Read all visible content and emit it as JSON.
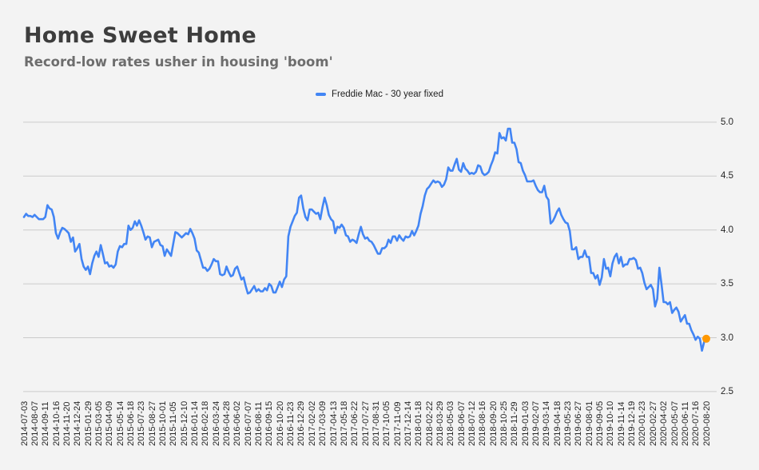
{
  "page": {
    "background": "#f3f3f3"
  },
  "header": {
    "title": "Home Sweet Home",
    "subtitle": "Record-low rates usher in housing 'boom'"
  },
  "legend": {
    "label": "Freddie Mac - 30 year fixed",
    "marker_color": "#4285f4"
  },
  "chart_data": {
    "type": "line",
    "title": "Home Sweet Home",
    "subtitle": "Record-low rates usher in housing 'boom'",
    "legend_position": "top-center",
    "grid": true,
    "y_axis": {
      "side": "right",
      "ticks": [
        5.0,
        4.5,
        4.0,
        3.5,
        3.0,
        2.5
      ],
      "ylim": [
        2.5,
        5.0
      ]
    },
    "x_axis": {
      "tick_every_n_points": 5,
      "label_rotation_deg": -90,
      "first_label": "2014-07-03",
      "last_label": "2020-08-20"
    },
    "colors": {
      "line": "#4285f4",
      "end_dot": "#ff9800",
      "gridline": "#cbcbcb"
    },
    "series": [
      {
        "name": "Freddie Mac - 30 year fixed",
        "color": "#4285f4",
        "end_point_marker": {
          "color": "#ff9800",
          "date": "2020-08-20",
          "value": 2.99
        },
        "x": [
          "2014-07-03",
          "2014-07-10",
          "2014-07-17",
          "2014-07-24",
          "2014-07-31",
          "2014-08-07",
          "2014-08-14",
          "2014-08-21",
          "2014-08-28",
          "2014-09-04",
          "2014-09-11",
          "2014-09-18",
          "2014-09-25",
          "2014-10-02",
          "2014-10-09",
          "2014-10-16",
          "2014-10-23",
          "2014-10-30",
          "2014-11-06",
          "2014-11-13",
          "2014-11-20",
          "2014-11-26",
          "2014-12-04",
          "2014-12-11",
          "2014-12-18",
          "2014-12-24",
          "2014-12-31",
          "2015-01-08",
          "2015-01-15",
          "2015-01-22",
          "2015-01-29",
          "2015-02-05",
          "2015-02-12",
          "2015-02-19",
          "2015-02-26",
          "2015-03-05",
          "2015-03-12",
          "2015-03-19",
          "2015-03-26",
          "2015-04-02",
          "2015-04-09",
          "2015-04-16",
          "2015-04-23",
          "2015-04-30",
          "2015-05-07",
          "2015-05-14",
          "2015-05-21",
          "2015-05-28",
          "2015-06-04",
          "2015-06-11",
          "2015-06-18",
          "2015-06-25",
          "2015-07-02",
          "2015-07-09",
          "2015-07-16",
          "2015-07-23",
          "2015-07-30",
          "2015-08-06",
          "2015-08-13",
          "2015-08-20",
          "2015-08-27",
          "2015-09-03",
          "2015-09-10",
          "2015-09-17",
          "2015-09-24",
          "2015-10-01",
          "2015-10-08",
          "2015-10-15",
          "2015-10-22",
          "2015-10-29",
          "2015-11-05",
          "2015-11-12",
          "2015-11-19",
          "2015-11-25",
          "2015-12-03",
          "2015-12-10",
          "2015-12-17",
          "2015-12-24",
          "2015-12-31",
          "2016-01-07",
          "2016-01-14",
          "2016-01-21",
          "2016-01-28",
          "2016-02-04",
          "2016-02-11",
          "2016-02-18",
          "2016-02-25",
          "2016-03-03",
          "2016-03-10",
          "2016-03-17",
          "2016-03-24",
          "2016-03-31",
          "2016-04-07",
          "2016-04-14",
          "2016-04-21",
          "2016-04-28",
          "2016-05-05",
          "2016-05-12",
          "2016-05-19",
          "2016-05-26",
          "2016-06-02",
          "2016-06-09",
          "2016-06-16",
          "2016-06-23",
          "2016-06-30",
          "2016-07-07",
          "2016-07-14",
          "2016-07-21",
          "2016-07-28",
          "2016-08-04",
          "2016-08-11",
          "2016-08-18",
          "2016-08-25",
          "2016-09-01",
          "2016-09-08",
          "2016-09-15",
          "2016-09-22",
          "2016-09-29",
          "2016-10-06",
          "2016-10-13",
          "2016-10-20",
          "2016-10-27",
          "2016-11-03",
          "2016-11-10",
          "2016-11-17",
          "2016-11-23",
          "2016-12-01",
          "2016-12-08",
          "2016-12-15",
          "2016-12-22",
          "2016-12-29",
          "2017-01-05",
          "2017-01-12",
          "2017-01-19",
          "2017-01-26",
          "2017-02-02",
          "2017-02-09",
          "2017-02-16",
          "2017-02-23",
          "2017-03-02",
          "2017-03-09",
          "2017-03-16",
          "2017-03-23",
          "2017-03-30",
          "2017-04-06",
          "2017-04-13",
          "2017-04-20",
          "2017-04-27",
          "2017-05-04",
          "2017-05-11",
          "2017-05-18",
          "2017-05-25",
          "2017-06-01",
          "2017-06-08",
          "2017-06-15",
          "2017-06-22",
          "2017-06-29",
          "2017-07-06",
          "2017-07-13",
          "2017-07-20",
          "2017-07-27",
          "2017-08-03",
          "2017-08-10",
          "2017-08-17",
          "2017-08-24",
          "2017-08-31",
          "2017-09-07",
          "2017-09-14",
          "2017-09-21",
          "2017-09-28",
          "2017-10-05",
          "2017-10-12",
          "2017-10-19",
          "2017-10-26",
          "2017-11-02",
          "2017-11-09",
          "2017-11-16",
          "2017-11-22",
          "2017-11-30",
          "2017-12-07",
          "2017-12-14",
          "2017-12-21",
          "2017-12-28",
          "2018-01-04",
          "2018-01-11",
          "2018-01-18",
          "2018-01-25",
          "2018-02-01",
          "2018-02-08",
          "2018-02-15",
          "2018-02-22",
          "2018-03-01",
          "2018-03-08",
          "2018-03-15",
          "2018-03-22",
          "2018-03-29",
          "2018-04-05",
          "2018-04-12",
          "2018-04-19",
          "2018-04-26",
          "2018-05-03",
          "2018-05-10",
          "2018-05-17",
          "2018-05-24",
          "2018-05-31",
          "2018-06-07",
          "2018-06-14",
          "2018-06-21",
          "2018-06-28",
          "2018-07-05",
          "2018-07-12",
          "2018-07-19",
          "2018-07-26",
          "2018-08-02",
          "2018-08-09",
          "2018-08-16",
          "2018-08-23",
          "2018-08-30",
          "2018-09-06",
          "2018-09-13",
          "2018-09-20",
          "2018-09-27",
          "2018-10-04",
          "2018-10-11",
          "2018-10-18",
          "2018-10-25",
          "2018-11-01",
          "2018-11-08",
          "2018-11-15",
          "2018-11-21",
          "2018-11-29",
          "2018-12-06",
          "2018-12-13",
          "2018-12-20",
          "2018-12-27",
          "2019-01-03",
          "2019-01-10",
          "2019-01-17",
          "2019-01-24",
          "2019-01-31",
          "2019-02-07",
          "2019-02-14",
          "2019-02-21",
          "2019-02-28",
          "2019-03-07",
          "2019-03-14",
          "2019-03-21",
          "2019-03-28",
          "2019-04-04",
          "2019-04-11",
          "2019-04-18",
          "2019-04-25",
          "2019-05-02",
          "2019-05-09",
          "2019-05-16",
          "2019-05-23",
          "2019-05-30",
          "2019-06-06",
          "2019-06-13",
          "2019-06-20",
          "2019-06-27",
          "2019-07-03",
          "2019-07-11",
          "2019-07-18",
          "2019-07-25",
          "2019-08-01",
          "2019-08-08",
          "2019-08-15",
          "2019-08-22",
          "2019-08-29",
          "2019-09-05",
          "2019-09-12",
          "2019-09-19",
          "2019-09-26",
          "2019-10-03",
          "2019-10-10",
          "2019-10-17",
          "2019-10-24",
          "2019-10-31",
          "2019-11-07",
          "2019-11-14",
          "2019-11-21",
          "2019-11-27",
          "2019-12-05",
          "2019-12-12",
          "2019-12-19",
          "2019-12-26",
          "2020-01-02",
          "2020-01-09",
          "2020-01-16",
          "2020-01-23",
          "2020-01-30",
          "2020-02-06",
          "2020-02-13",
          "2020-02-20",
          "2020-02-27",
          "2020-03-05",
          "2020-03-12",
          "2020-03-19",
          "2020-03-26",
          "2020-04-02",
          "2020-04-09",
          "2020-04-16",
          "2020-04-23",
          "2020-04-30",
          "2020-05-07",
          "2020-05-14",
          "2020-05-21",
          "2020-05-28",
          "2020-06-04",
          "2020-06-11",
          "2020-06-18",
          "2020-06-25",
          "2020-07-02",
          "2020-07-09",
          "2020-07-16",
          "2020-07-23",
          "2020-07-30",
          "2020-08-06",
          "2020-08-13",
          "2020-08-20"
        ],
        "values": [
          4.12,
          4.15,
          4.13,
          4.13,
          4.12,
          4.14,
          4.12,
          4.1,
          4.1,
          4.1,
          4.12,
          4.23,
          4.2,
          4.19,
          4.12,
          3.97,
          3.92,
          3.98,
          4.02,
          4.01,
          3.99,
          3.97,
          3.89,
          3.93,
          3.8,
          3.83,
          3.87,
          3.73,
          3.66,
          3.63,
          3.66,
          3.59,
          3.69,
          3.76,
          3.8,
          3.75,
          3.86,
          3.78,
          3.69,
          3.7,
          3.66,
          3.67,
          3.65,
          3.68,
          3.8,
          3.85,
          3.84,
          3.87,
          3.87,
          4.04,
          4.0,
          4.02,
          4.08,
          4.04,
          4.09,
          4.04,
          3.98,
          3.91,
          3.94,
          3.93,
          3.84,
          3.89,
          3.9,
          3.91,
          3.86,
          3.85,
          3.76,
          3.82,
          3.79,
          3.76,
          3.87,
          3.98,
          3.97,
          3.95,
          3.93,
          3.95,
          3.97,
          3.96,
          4.01,
          3.97,
          3.92,
          3.81,
          3.79,
          3.72,
          3.65,
          3.65,
          3.62,
          3.64,
          3.68,
          3.73,
          3.71,
          3.71,
          3.59,
          3.58,
          3.59,
          3.66,
          3.61,
          3.57,
          3.58,
          3.64,
          3.66,
          3.6,
          3.54,
          3.56,
          3.48,
          3.41,
          3.42,
          3.45,
          3.48,
          3.43,
          3.45,
          3.43,
          3.43,
          3.46,
          3.44,
          3.5,
          3.48,
          3.42,
          3.42,
          3.47,
          3.52,
          3.47,
          3.54,
          3.57,
          3.94,
          4.03,
          4.08,
          4.13,
          4.16,
          4.3,
          4.32,
          4.2,
          4.12,
          4.09,
          4.19,
          4.19,
          4.17,
          4.15,
          4.16,
          4.1,
          4.21,
          4.3,
          4.23,
          4.14,
          4.1,
          4.08,
          3.97,
          4.03,
          4.02,
          4.05,
          4.02,
          3.95,
          3.94,
          3.89,
          3.91,
          3.9,
          3.88,
          3.96,
          4.03,
          3.96,
          3.92,
          3.93,
          3.9,
          3.89,
          3.86,
          3.82,
          3.78,
          3.78,
          3.83,
          3.83,
          3.85,
          3.91,
          3.88,
          3.94,
          3.94,
          3.9,
          3.95,
          3.92,
          3.9,
          3.94,
          3.93,
          3.94,
          3.99,
          3.95,
          3.99,
          4.04,
          4.15,
          4.22,
          4.32,
          4.38,
          4.4,
          4.43,
          4.46,
          4.44,
          4.45,
          4.44,
          4.4,
          4.42,
          4.47,
          4.58,
          4.55,
          4.55,
          4.61,
          4.66,
          4.56,
          4.54,
          4.62,
          4.57,
          4.55,
          4.52,
          4.53,
          4.52,
          4.54,
          4.6,
          4.59,
          4.53,
          4.51,
          4.52,
          4.54,
          4.6,
          4.65,
          4.72,
          4.71,
          4.9,
          4.85,
          4.86,
          4.83,
          4.94,
          4.94,
          4.81,
          4.81,
          4.75,
          4.63,
          4.62,
          4.55,
          4.51,
          4.45,
          4.45,
          4.45,
          4.46,
          4.41,
          4.37,
          4.35,
          4.35,
          4.41,
          4.31,
          4.28,
          4.06,
          4.08,
          4.12,
          4.17,
          4.2,
          4.14,
          4.1,
          4.07,
          4.06,
          3.99,
          3.82,
          3.82,
          3.84,
          3.73,
          3.75,
          3.75,
          3.81,
          3.75,
          3.75,
          3.6,
          3.6,
          3.55,
          3.58,
          3.49,
          3.56,
          3.73,
          3.64,
          3.65,
          3.57,
          3.69,
          3.75,
          3.78,
          3.69,
          3.75,
          3.66,
          3.68,
          3.68,
          3.73,
          3.73,
          3.74,
          3.72,
          3.64,
          3.65,
          3.6,
          3.51,
          3.45,
          3.47,
          3.49,
          3.45,
          3.29,
          3.36,
          3.65,
          3.5,
          3.33,
          3.33,
          3.31,
          3.33,
          3.23,
          3.26,
          3.28,
          3.24,
          3.15,
          3.18,
          3.21,
          3.13,
          3.13,
          3.07,
          3.03,
          2.98,
          3.01,
          2.99,
          2.88,
          2.96,
          2.99
        ]
      }
    ]
  }
}
